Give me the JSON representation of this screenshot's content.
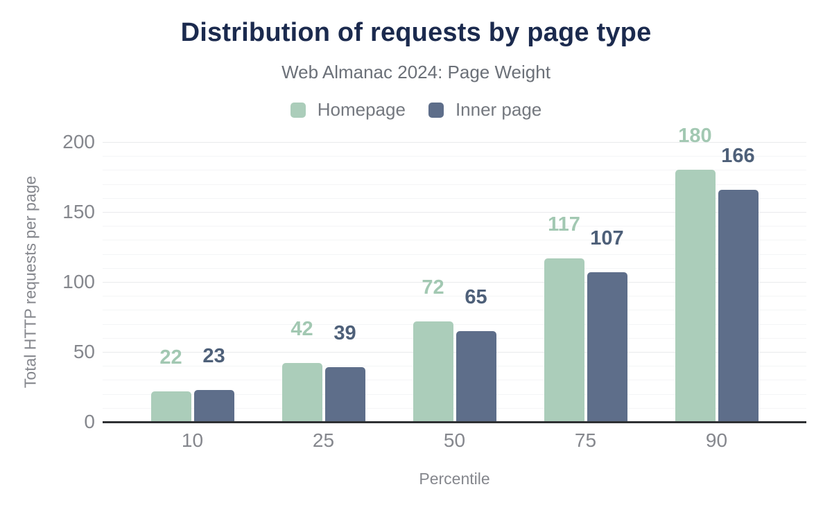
{
  "header": {
    "title": "Distribution of requests by page type",
    "subtitle": "Web Almanac 2024: Page Weight"
  },
  "chart_data": {
    "type": "bar",
    "title": "Distribution of requests by page type",
    "subtitle": "Web Almanac 2024: Page Weight",
    "categories": [
      "10",
      "25",
      "50",
      "75",
      "90"
    ],
    "series": [
      {
        "name": "Homepage",
        "color": "#abcdba",
        "label_color": "#a2c8b2",
        "values": [
          22,
          42,
          72,
          117,
          180
        ]
      },
      {
        "name": "Inner page",
        "color": "#5e6e8a",
        "label_color": "#4e6079",
        "values": [
          23,
          39,
          65,
          107,
          166
        ]
      }
    ],
    "xlabel": "Percentile",
    "ylabel": "Total HTTP requests per page",
    "ylim": [
      0,
      200
    ],
    "yticks": [
      0,
      50,
      100,
      150,
      200
    ],
    "minor_grid_step": 10,
    "major_grid_step": 50,
    "grid": true,
    "legend_position": "top",
    "data_labels": true
  },
  "colors": {
    "title": "#1b2a4e",
    "subtitle": "#6b7078",
    "axis_text": "#85878d",
    "legend_text": "#74787f",
    "baseline": "#2e3033",
    "grid_major": "#e9eaec",
    "grid_minor": "#f4f5f6",
    "background": "#ffffff"
  }
}
